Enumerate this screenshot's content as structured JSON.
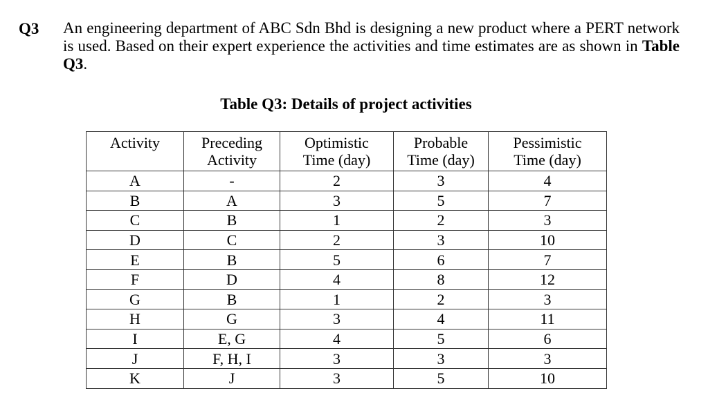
{
  "question": {
    "label": "Q3",
    "text_before_bold": "An engineering department of ABC Sdn Bhd is designing a new product where a PERT network is used. Based on their expert experience the activities and time estimates are as shown in ",
    "bold_ref": "Table Q3",
    "text_after_bold": "."
  },
  "table": {
    "caption": "Table Q3: Details of project activities",
    "headers": [
      {
        "line1": "Activity",
        "line2": ""
      },
      {
        "line1": "Preceding",
        "line2": "Activity"
      },
      {
        "line1": "Optimistic",
        "line2": "Time (day)"
      },
      {
        "line1": "Probable",
        "line2": "Time (day)"
      },
      {
        "line1": "Pessimistic",
        "line2": "Time (day)"
      }
    ],
    "rows": [
      [
        "A",
        "-",
        "2",
        "3",
        "4"
      ],
      [
        "B",
        "A",
        "3",
        "5",
        "7"
      ],
      [
        "C",
        "B",
        "1",
        "2",
        "3"
      ],
      [
        "D",
        "C",
        "2",
        "3",
        "10"
      ],
      [
        "E",
        "B",
        "5",
        "6",
        "7"
      ],
      [
        "F",
        "D",
        "4",
        "8",
        "12"
      ],
      [
        "G",
        "B",
        "1",
        "2",
        "3"
      ],
      [
        "H",
        "G",
        "3",
        "4",
        "11"
      ],
      [
        "I",
        "E, G",
        "4",
        "5",
        "6"
      ],
      [
        "J",
        "F, H, I",
        "3",
        "3",
        "3"
      ],
      [
        "K",
        "J",
        "3",
        "5",
        "10"
      ]
    ]
  }
}
